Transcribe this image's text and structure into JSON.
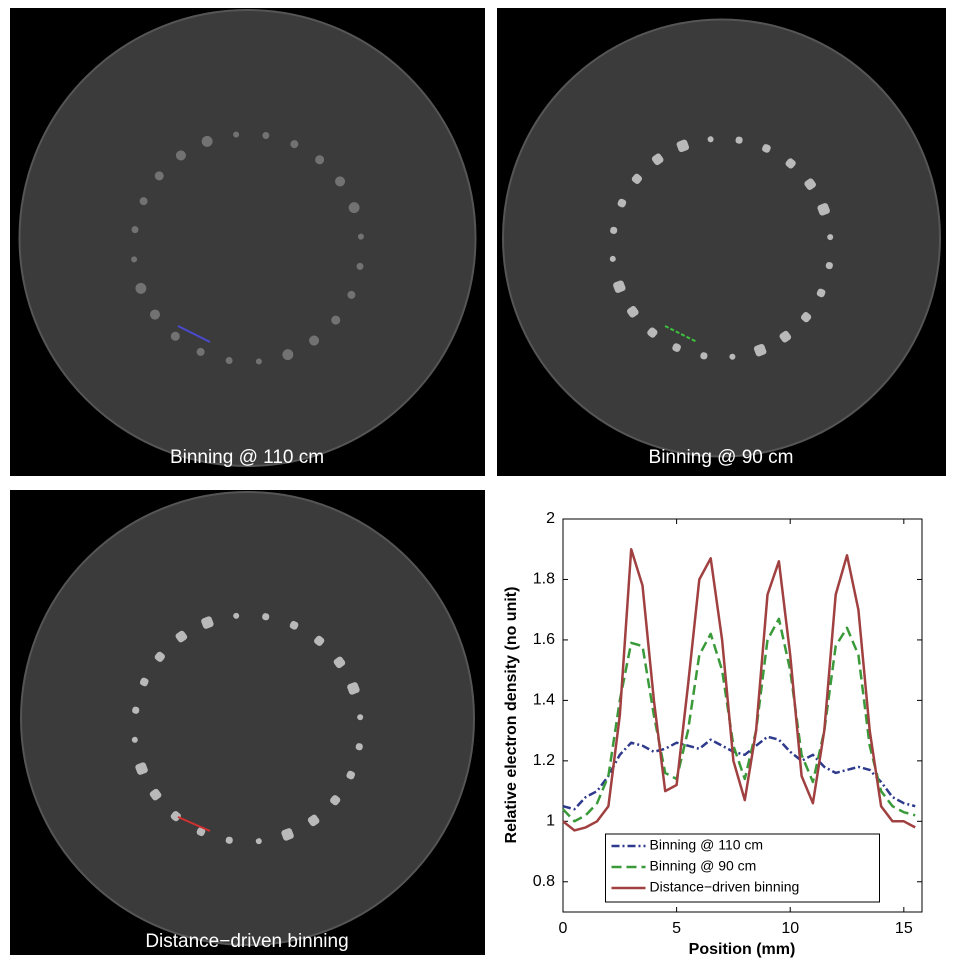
{
  "panels": [
    {
      "caption": "Binning @ 110 cm"
    },
    {
      "caption": "Binning @ 90 cm"
    },
    {
      "caption": "Distance−driven binning"
    }
  ],
  "chart_data": {
    "type": "line",
    "x_label": "Position (mm)",
    "y_label": "Relative electron density (no unit)",
    "x": [
      0,
      0.5,
      1,
      1.5,
      2,
      2.5,
      3,
      3.5,
      4,
      4.5,
      5,
      5.5,
      6,
      6.5,
      7,
      7.5,
      8,
      8.5,
      9,
      9.5,
      10,
      10.5,
      11,
      11.5,
      12,
      12.5,
      13,
      13.5,
      14,
      14.5,
      15,
      15.5
    ],
    "series": [
      {
        "name": "Binning @ 110 cm",
        "color": "#2e3a8c",
        "linestyle": "dashdot",
        "values": [
          1.05,
          1.04,
          1.08,
          1.1,
          1.15,
          1.22,
          1.26,
          1.25,
          1.23,
          1.24,
          1.26,
          1.25,
          1.24,
          1.27,
          1.25,
          1.23,
          1.22,
          1.25,
          1.28,
          1.27,
          1.23,
          1.2,
          1.22,
          1.18,
          1.16,
          1.17,
          1.18,
          1.17,
          1.13,
          1.08,
          1.06,
          1.05
        ]
      },
      {
        "name": "Binning @ 90 cm",
        "color": "#3a9a3a",
        "linestyle": "dashed",
        "values": [
          1.04,
          1.0,
          1.02,
          1.06,
          1.15,
          1.4,
          1.59,
          1.58,
          1.35,
          1.16,
          1.14,
          1.3,
          1.55,
          1.62,
          1.5,
          1.25,
          1.14,
          1.3,
          1.6,
          1.67,
          1.5,
          1.22,
          1.13,
          1.3,
          1.58,
          1.64,
          1.55,
          1.25,
          1.1,
          1.05,
          1.03,
          1.02
        ]
      },
      {
        "name": "Distance−driven binning",
        "color": "#a04040",
        "linestyle": "solid",
        "values": [
          1.0,
          0.97,
          0.98,
          1.0,
          1.05,
          1.35,
          1.9,
          1.78,
          1.4,
          1.1,
          1.12,
          1.45,
          1.8,
          1.87,
          1.6,
          1.2,
          1.07,
          1.3,
          1.75,
          1.86,
          1.55,
          1.15,
          1.06,
          1.3,
          1.75,
          1.88,
          1.7,
          1.3,
          1.05,
          1.0,
          1.0,
          0.98
        ]
      }
    ],
    "xlim": [
      0,
      15.8
    ],
    "ylim": [
      0.7,
      2
    ],
    "xticks": [
      0,
      5,
      10,
      15
    ],
    "yticks": [
      0.8,
      1,
      1.2,
      1.4,
      1.6,
      1.8,
      2
    ],
    "legend": "lower center"
  }
}
